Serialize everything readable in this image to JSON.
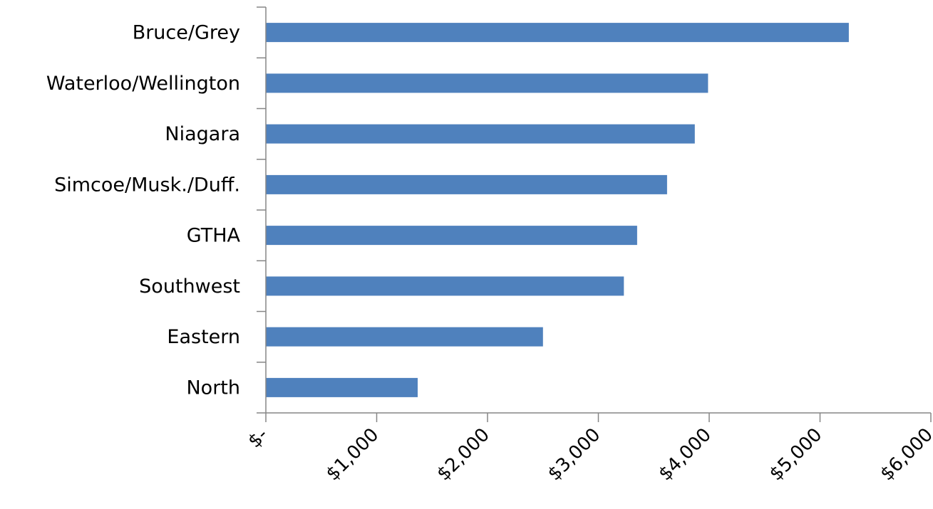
{
  "chart_data": {
    "type": "bar",
    "orientation": "horizontal",
    "categories": [
      "Bruce/Grey",
      "Waterloo/Wellington",
      "Niagara",
      "Simcoe/Musk./Duff.",
      "GTHA",
      "Southwest",
      "Eastern",
      "North"
    ],
    "values": [
      5260,
      3990,
      3870,
      3620,
      3350,
      3230,
      2500,
      1370
    ],
    "xlim": [
      0,
      6000
    ],
    "x_ticks": [
      0,
      1000,
      2000,
      3000,
      4000,
      5000,
      6000
    ],
    "x_tick_labels": [
      "$-",
      "$1,000",
      "$2,000",
      "$3,000",
      "$4,000",
      "$5,000",
      "$6,000"
    ],
    "tick_label_rotation": "-45deg",
    "title": "",
    "xlabel": "",
    "ylabel": "",
    "grid": false,
    "legend": "none",
    "bar_color": "#4F81BD",
    "axis_color": "#868686"
  }
}
